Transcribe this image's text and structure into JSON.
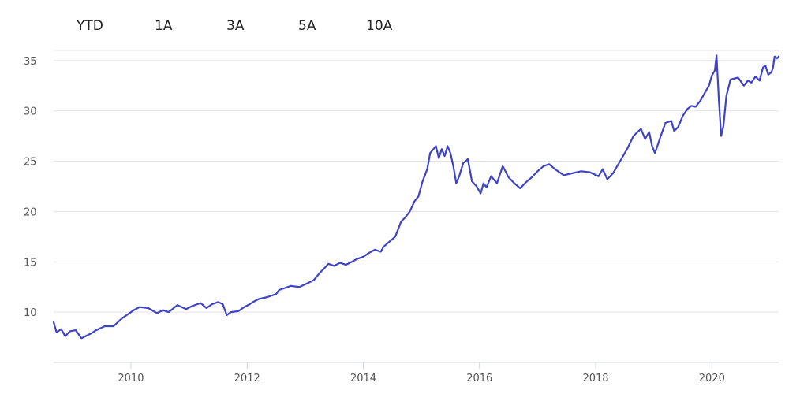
{
  "range_buttons": [
    "YTD",
    "1A",
    "3A",
    "5A",
    "10A"
  ],
  "colors": {
    "line": "#3f44c7",
    "grid": "#e3e3ea",
    "axis_text": "#555555"
  },
  "chart_data": {
    "type": "line",
    "title": "",
    "xlabel": "",
    "ylabel": "",
    "xlim": [
      2008.67,
      2021.15
    ],
    "ylim": [
      5,
      36
    ],
    "x_ticks": [
      2010,
      2012,
      2014,
      2016,
      2018,
      2020
    ],
    "y_ticks": [
      10,
      15,
      20,
      25,
      30,
      35
    ],
    "grid": true,
    "series": [
      {
        "x": [
          2008.67,
          2008.72,
          2008.8,
          2008.87,
          2008.95,
          2009.05,
          2009.15,
          2009.25,
          2009.32,
          2009.4,
          2009.55,
          2009.7,
          2009.85,
          2009.95,
          2010.05,
          2010.15,
          2010.3,
          2010.45,
          2010.55,
          2010.65,
          2010.8,
          2010.95,
          2011.05,
          2011.2,
          2011.3,
          2011.4,
          2011.5,
          2011.58,
          2011.65,
          2011.72,
          2011.85,
          2011.95,
          2012.05,
          2012.1,
          2012.2,
          2012.35,
          2012.5,
          2012.55,
          2012.65,
          2012.75,
          2012.9,
          2013.05,
          2013.15,
          2013.25,
          2013.32,
          2013.4,
          2013.5,
          2013.6,
          2013.7,
          2013.8,
          2013.9,
          2014.0,
          2014.1,
          2014.2,
          2014.3,
          2014.35,
          2014.45,
          2014.55,
          2014.65,
          2014.72,
          2014.8,
          2014.88,
          2014.95,
          2015.02,
          2015.1,
          2015.15,
          2015.25,
          2015.3,
          2015.35,
          2015.4,
          2015.45,
          2015.5,
          2015.55,
          2015.6,
          2015.65,
          2015.72,
          2015.8,
          2015.87,
          2015.95,
          2016.02,
          2016.07,
          2016.12,
          2016.2,
          2016.3,
          2016.4,
          2016.5,
          2016.6,
          2016.7,
          2016.8,
          2016.9,
          2017.0,
          2017.1,
          2017.2,
          2017.3,
          2017.45,
          2017.6,
          2017.75,
          2017.9,
          2018.05,
          2018.12,
          2018.2,
          2018.3,
          2018.42,
          2018.55,
          2018.65,
          2018.72,
          2018.78,
          2018.85,
          2018.92,
          2018.97,
          2019.02,
          2019.12,
          2019.2,
          2019.3,
          2019.35,
          2019.42,
          2019.5,
          2019.58,
          2019.65,
          2019.72,
          2019.8,
          2019.88,
          2019.95,
          2020.0,
          2020.05,
          2020.08,
          2020.12,
          2020.16,
          2020.2,
          2020.25,
          2020.32,
          2020.45,
          2020.55,
          2020.62,
          2020.68,
          2020.75,
          2020.82,
          2020.88,
          2020.92,
          2020.97,
          2021.02,
          2021.05,
          2021.08,
          2021.12,
          2021.15
        ],
        "values": [
          9.0,
          8.0,
          8.3,
          7.6,
          8.1,
          8.2,
          7.4,
          7.7,
          7.9,
          8.2,
          8.6,
          8.6,
          9.4,
          9.8,
          10.2,
          10.5,
          10.4,
          9.9,
          10.2,
          10.0,
          10.7,
          10.3,
          10.6,
          10.9,
          10.4,
          10.8,
          11.0,
          10.8,
          9.7,
          10.0,
          10.1,
          10.5,
          10.8,
          11.0,
          11.3,
          11.5,
          11.8,
          12.2,
          12.4,
          12.6,
          12.5,
          12.9,
          13.2,
          13.9,
          14.3,
          14.8,
          14.6,
          14.9,
          14.7,
          15.0,
          15.3,
          15.5,
          15.9,
          16.2,
          16.0,
          16.5,
          17.0,
          17.5,
          19.0,
          19.4,
          20.0,
          21.0,
          21.5,
          23.0,
          24.2,
          25.8,
          26.5,
          25.3,
          26.2,
          25.5,
          26.5,
          25.8,
          24.5,
          22.8,
          23.5,
          24.8,
          25.2,
          23.0,
          22.5,
          21.8,
          22.8,
          22.4,
          23.5,
          22.8,
          24.5,
          23.4,
          22.8,
          22.3,
          22.9,
          23.4,
          24.0,
          24.5,
          24.7,
          24.2,
          23.6,
          23.8,
          24.0,
          23.9,
          23.5,
          24.2,
          23.2,
          23.8,
          25.0,
          26.3,
          27.5,
          27.9,
          28.2,
          27.2,
          27.9,
          26.5,
          25.8,
          27.5,
          28.8,
          29.0,
          28.0,
          28.4,
          29.5,
          30.2,
          30.5,
          30.4,
          31.0,
          31.8,
          32.5,
          33.5,
          34.0,
          35.5,
          31.0,
          27.5,
          28.5,
          31.5,
          33.1,
          33.3,
          32.5,
          33.0,
          32.8,
          33.4,
          33.0,
          34.3,
          34.5,
          33.6,
          33.8,
          34.2,
          35.4,
          35.2,
          35.4
        ]
      }
    ]
  }
}
